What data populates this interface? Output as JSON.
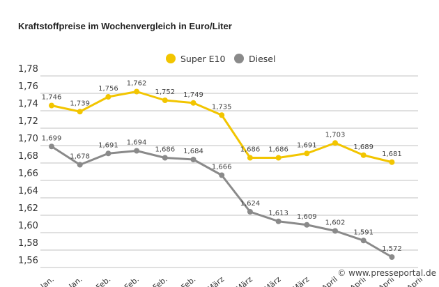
{
  "chart_data": {
    "type": "line",
    "title": "Kraftstoffpreise im Wochenvergleich in Euro/Liter",
    "categories": [
      "Jan.",
      "Jan.",
      "Feb.",
      "Feb.",
      "Feb.",
      "Feb.",
      "März",
      "März",
      "März",
      "März",
      "April",
      "April",
      "April",
      "April"
    ],
    "series": [
      {
        "name": "Super E10",
        "color": "#f2c500",
        "values": [
          1.746,
          1.739,
          1.756,
          1.762,
          1.752,
          1.749,
          1.735,
          1.686,
          1.686,
          1.691,
          1.703,
          1.689,
          1.681,
          null
        ]
      },
      {
        "name": "Diesel",
        "color": "#8a8a8a",
        "values": [
          1.699,
          1.678,
          1.691,
          1.694,
          1.686,
          1.684,
          1.666,
          1.624,
          1.613,
          1.609,
          1.602,
          1.591,
          1.572,
          null
        ]
      }
    ],
    "yticks": [
      "1,78",
      "1,76",
      "1,74",
      "1,72",
      "1,70",
      "1,68",
      "1,66",
      "1,64",
      "1,62",
      "1,60",
      "1,58",
      "1,56"
    ],
    "ylim": [
      1.56,
      1.78
    ],
    "grid": true,
    "legend": "top-right"
  },
  "watermark": "© www.presseportal.de"
}
